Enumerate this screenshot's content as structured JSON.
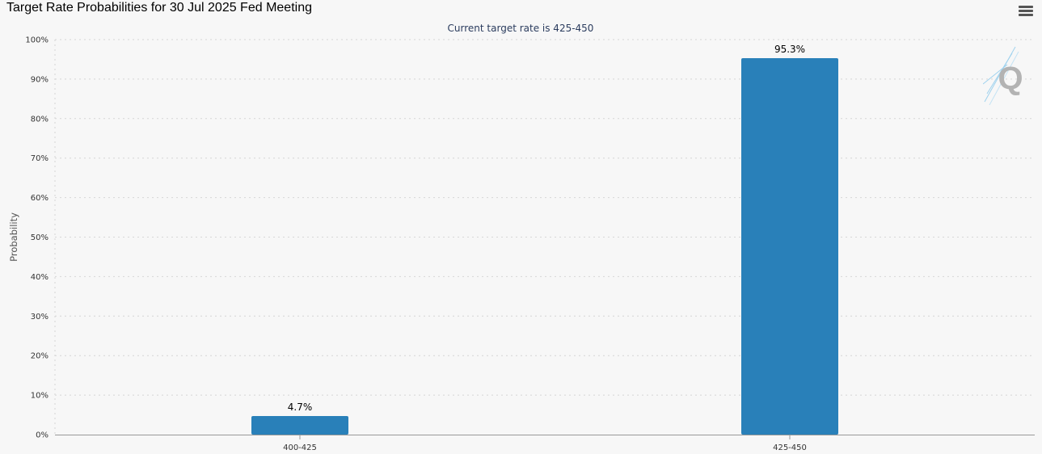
{
  "header": {
    "title": "Target Rate Probabilities for 30 Jul 2025 Fed Meeting",
    "menu_icon": "hamburger-menu-icon",
    "watermark_text": "Q"
  },
  "colors": {
    "bar": "#2980b9",
    "grid": "#d6d6d6",
    "axis": "#999999",
    "subtitle": "#2b3c5e",
    "watermark": "#b3b3b3"
  },
  "chart_data": {
    "type": "bar",
    "title": "Target Rate Probabilities for 30 Jul 2025 Fed Meeting",
    "subtitle": "Current target rate is 425-450",
    "xlabel": "",
    "ylabel": "Probability",
    "categories": [
      "400-425",
      "425-450"
    ],
    "values": [
      4.7,
      95.3
    ],
    "data_labels": [
      "4.7%",
      "95.3%"
    ],
    "ylim": [
      0,
      100
    ],
    "yticks": [
      0,
      10,
      20,
      30,
      40,
      50,
      60,
      70,
      80,
      90,
      100
    ],
    "ytick_labels": [
      "0%",
      "10%",
      "20%",
      "30%",
      "40%",
      "50%",
      "60%",
      "70%",
      "80%",
      "90%",
      "100%"
    ],
    "grid": true,
    "legend": "none"
  }
}
